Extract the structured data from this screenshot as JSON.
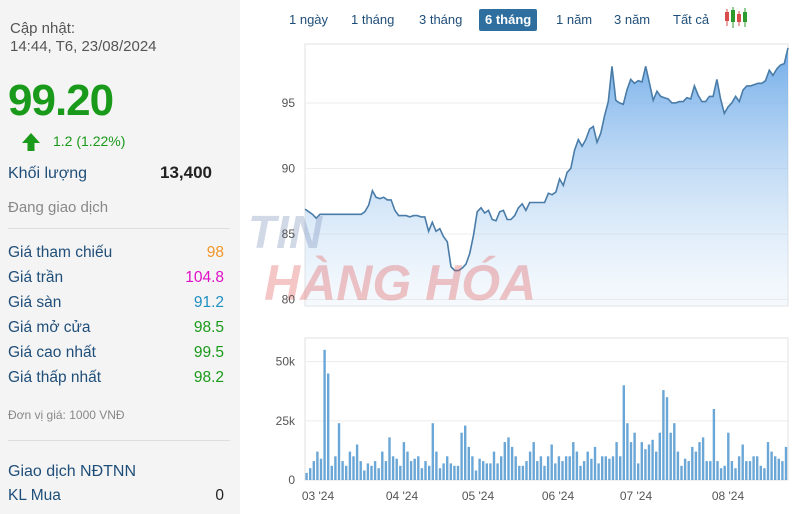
{
  "header": {
    "update_label": "Cập nhật:",
    "update_time": "14:44, T6, 23/08/2024",
    "price": "99.20",
    "change": "1.2 (1.22%)"
  },
  "volume": {
    "label": "Khối lượng",
    "value": "13,400"
  },
  "status": "Đang giao dịch",
  "stats": [
    {
      "label": "Giá tham chiếu",
      "value": "98",
      "color": "#f0962a"
    },
    {
      "label": "Giá trần",
      "value": "104.8",
      "color": "#e010c8"
    },
    {
      "label": "Giá sàn",
      "value": "91.2",
      "color": "#1f8fc0"
    },
    {
      "label": "Giá mở cửa",
      "value": "98.5",
      "color": "#1a9a1a"
    },
    {
      "label": "Giá cao nhất",
      "value": "99.5",
      "color": "#1a9a1a"
    },
    {
      "label": "Giá thấp nhất",
      "value": "98.2",
      "color": "#1a9a1a"
    }
  ],
  "unit_note": "Đơn vị giá: 1000 VNĐ",
  "foreign": {
    "title": "Giao dịch NĐTNN",
    "buy_label": "KL Mua",
    "buy_value": "0"
  },
  "ranges": [
    {
      "label": "1 ngày",
      "active": false
    },
    {
      "label": "1 tháng",
      "active": false
    },
    {
      "label": "3 tháng",
      "active": false
    },
    {
      "label": "6 tháng",
      "active": true
    },
    {
      "label": "1 năm",
      "active": false
    },
    {
      "label": "3 năm",
      "active": false
    },
    {
      "label": "Tất cả",
      "active": false
    }
  ],
  "watermark": {
    "line1": "TIN",
    "line2": "HÀNG HÓA"
  },
  "colors": {
    "up": "#1a9a1a",
    "line": "#4a7ca8",
    "area": "#7fb4ea",
    "volume": "#6aa6d6"
  },
  "chart_data": [
    {
      "type": "area",
      "x_ticks": [
        "03 '24",
        "04 '24",
        "05 '24",
        "06 '24",
        "07 '24",
        "08 '24"
      ],
      "y_ticks": [
        "80",
        "85",
        "90",
        "95"
      ],
      "ylim": [
        79.5,
        99.5
      ],
      "values": [
        86.9,
        86.7,
        86.5,
        86.2,
        86.5,
        86.5,
        86.5,
        86.5,
        86.5,
        86.5,
        86.5,
        86.5,
        86.5,
        86.5,
        86.5,
        86.5,
        86.7,
        87.2,
        88.3,
        87.8,
        87.7,
        87.8,
        87.6,
        87.6,
        86.8,
        86.4,
        86.4,
        86.4,
        86.3,
        86.4,
        86.4,
        86.3,
        86.3,
        85.2,
        85.9,
        85.2,
        85.4,
        84.8,
        84.4,
        82.5,
        82.2,
        82.2,
        82.4,
        82.7,
        83.5,
        84.9,
        86.7,
        87.0,
        86.6,
        86.8,
        86.1,
        86.0,
        86.7,
        86.8,
        86.1,
        86.1,
        86.4,
        87.0,
        87.3,
        86.8,
        87.4,
        87.4,
        87.4,
        87.4,
        87.4,
        88.1,
        88.0,
        88.2,
        89.2,
        88.7,
        89.7,
        90.0,
        91.4,
        92.2,
        91.7,
        92.2,
        93.0,
        93.2,
        92.0,
        92.7,
        94.0,
        95.1,
        97.8,
        95.2,
        95.0,
        94.9,
        96.0,
        96.8,
        96.5,
        96.7,
        96.6,
        97.8,
        96.5,
        95.2,
        95.9,
        95.5,
        95.4,
        95.3,
        95.0,
        95.0,
        95.1,
        95.1,
        95.4,
        95.3,
        96.3,
        95.6,
        95.1,
        95.1,
        95.5,
        95.5,
        96.8,
        95.3,
        94.2,
        94.7,
        95.0,
        95.5,
        95.1,
        96.0,
        96.3,
        96.3,
        96.4,
        96.5,
        96.5,
        96.7,
        97.5,
        97.1,
        97.6,
        97.9,
        98.0,
        99.2
      ]
    },
    {
      "type": "bar",
      "y_ticks": [
        "0",
        "25k",
        "50k"
      ],
      "ylim": [
        0,
        60000
      ],
      "values": [
        3000,
        5000,
        8000,
        12000,
        9000,
        55000,
        45000,
        6000,
        10000,
        24000,
        8000,
        6000,
        12000,
        10000,
        15000,
        8000,
        4000,
        7000,
        6000,
        8000,
        5000,
        12000,
        8000,
        18000,
        10000,
        9000,
        6000,
        16000,
        12000,
        8000,
        9000,
        10000,
        5000,
        8000,
        6000,
        24000,
        12000,
        5000,
        7000,
        10000,
        7000,
        6000,
        6000,
        20000,
        23000,
        14000,
        10000,
        4000,
        9000,
        8000,
        7000,
        7000,
        12000,
        7000,
        10000,
        16000,
        18000,
        14000,
        10000,
        6000,
        6000,
        8000,
        12000,
        16000,
        8000,
        10000,
        6000,
        10000,
        15000,
        7000,
        10000,
        8000,
        10000,
        10000,
        16000,
        12000,
        6000,
        8000,
        12000,
        9000,
        14000,
        7000,
        10000,
        10000,
        9000,
        10000,
        16000,
        10000,
        40000,
        24000,
        16000,
        20000,
        7000,
        16000,
        13000,
        15000,
        17000,
        12000,
        20000,
        38000,
        35000,
        20000,
        24000,
        12000,
        6000,
        9000,
        8000,
        14000,
        12000,
        16000,
        18000,
        8000,
        8000,
        30000,
        8000,
        5000,
        6000,
        20000,
        8000,
        5000,
        10000,
        15000,
        8000,
        8000,
        10000,
        10000,
        6000,
        5000,
        16000,
        12000,
        10000,
        9000,
        8000,
        14000
      ]
    }
  ]
}
